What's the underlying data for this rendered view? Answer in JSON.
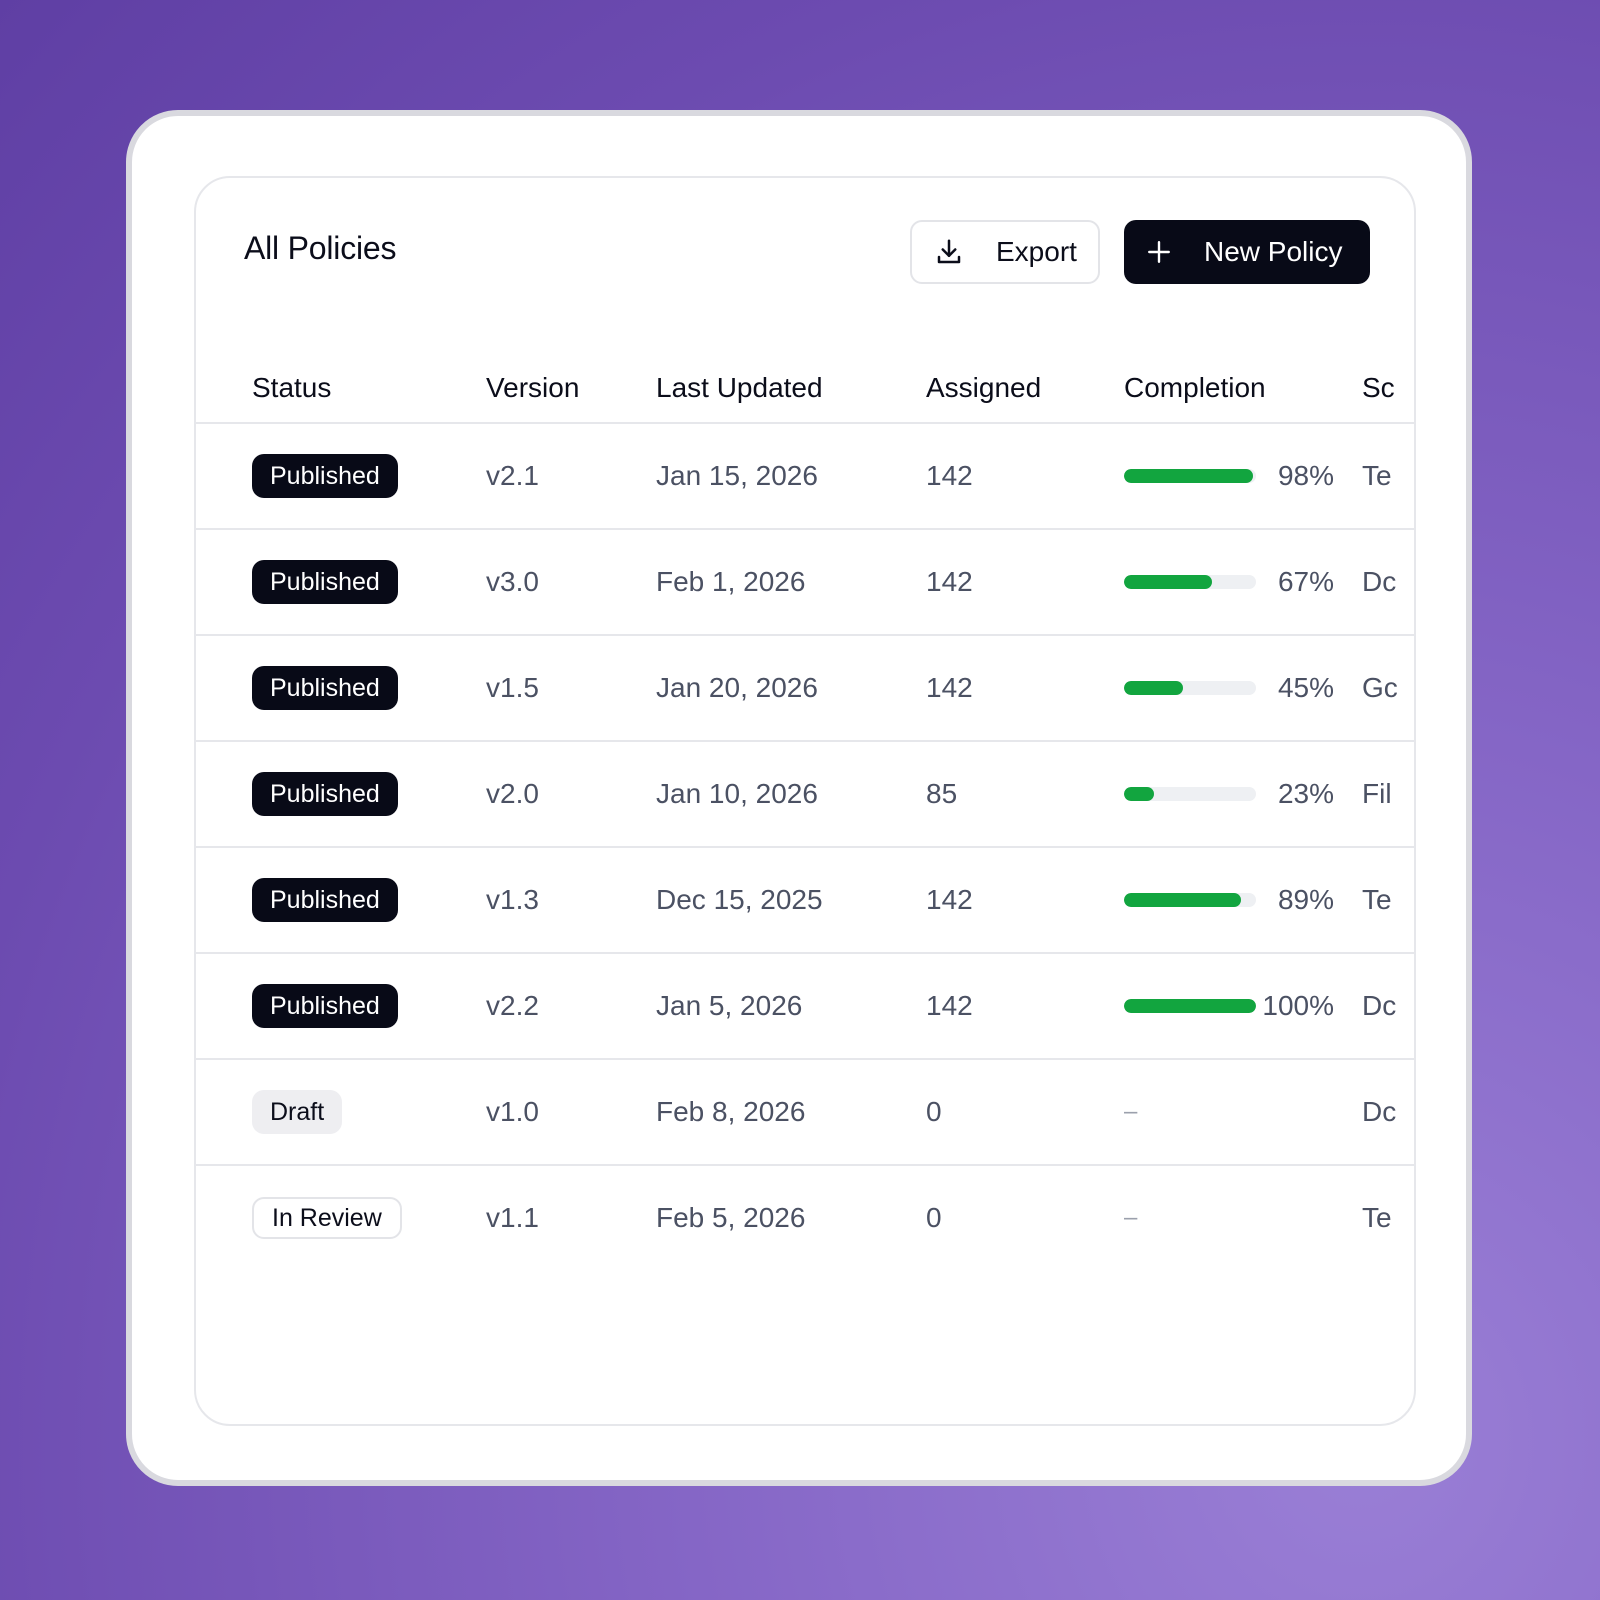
{
  "header": {
    "title": "All Policies",
    "export_label": "Export",
    "new_policy_label": "New Policy"
  },
  "columns": {
    "status": "Status",
    "version": "Version",
    "last_updated": "Last Updated",
    "assigned": "Assigned",
    "completion": "Completion",
    "scope": "Sc"
  },
  "colors": {
    "published_badge": "#080a17",
    "progress_fill": "#12a53f",
    "background": "#6c4bb0"
  },
  "rows": [
    {
      "status": "Published",
      "status_type": "published",
      "version": "v2.1",
      "last_updated": "Jan 15, 2026",
      "assigned": "142",
      "completion": 98,
      "completion_label": "98%",
      "scope": "Te"
    },
    {
      "status": "Published",
      "status_type": "published",
      "version": "v3.0",
      "last_updated": "Feb 1, 2026",
      "assigned": "142",
      "completion": 67,
      "completion_label": "67%",
      "scope": "Dc"
    },
    {
      "status": "Published",
      "status_type": "published",
      "version": "v1.5",
      "last_updated": "Jan 20, 2026",
      "assigned": "142",
      "completion": 45,
      "completion_label": "45%",
      "scope": "Gc"
    },
    {
      "status": "Published",
      "status_type": "published",
      "version": "v2.0",
      "last_updated": "Jan 10, 2026",
      "assigned": "85",
      "completion": 23,
      "completion_label": "23%",
      "scope": "Fil"
    },
    {
      "status": "Published",
      "status_type": "published",
      "version": "v1.3",
      "last_updated": "Dec 15, 2025",
      "assigned": "142",
      "completion": 89,
      "completion_label": "89%",
      "scope": "Te"
    },
    {
      "status": "Published",
      "status_type": "published",
      "version": "v2.2",
      "last_updated": "Jan 5, 2026",
      "assigned": "142",
      "completion": 100,
      "completion_label": "100%",
      "scope": "Dc"
    },
    {
      "status": "Draft",
      "status_type": "draft",
      "version": "v1.0",
      "last_updated": "Feb 8, 2026",
      "assigned": "0",
      "completion": null,
      "completion_label": "–",
      "scope": "Dc"
    },
    {
      "status": "In Review",
      "status_type": "review",
      "version": "v1.1",
      "last_updated": "Feb 5, 2026",
      "assigned": "0",
      "completion": null,
      "completion_label": "–",
      "scope": "Te"
    }
  ]
}
